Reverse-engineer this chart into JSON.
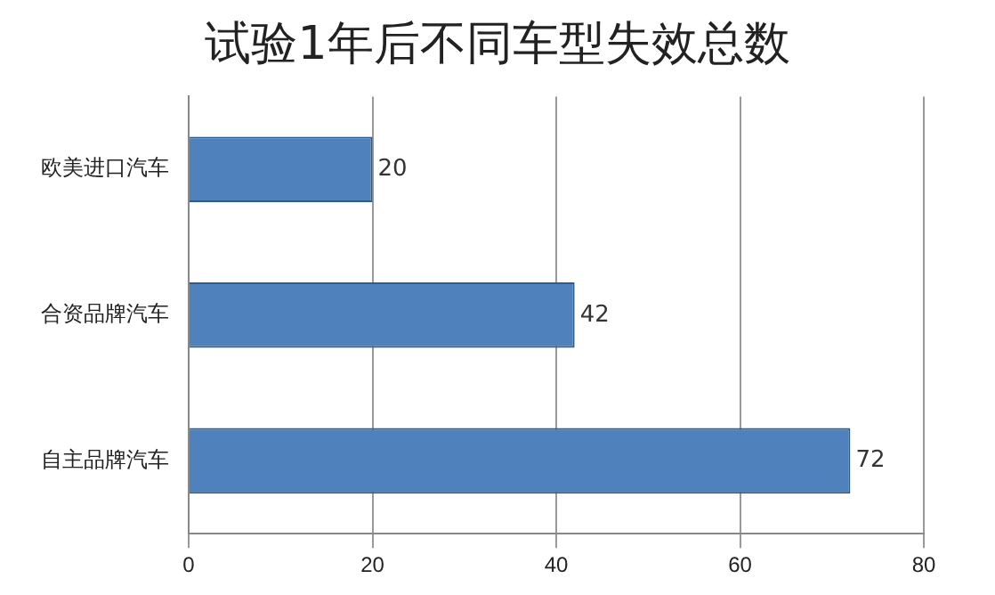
{
  "chart_data": {
    "type": "bar",
    "orientation": "horizontal",
    "title": "试验1年后不同车型失效总数",
    "categories": [
      "欧美进口汽车",
      "合资品牌汽车",
      "自主品牌汽车"
    ],
    "values": [
      20,
      42,
      72
    ],
    "color": "#4f81bd",
    "xlim": [
      0,
      80
    ],
    "xticks": [
      0,
      20,
      40,
      60,
      80
    ],
    "grid": "x",
    "data_labels": true,
    "legend": false
  }
}
